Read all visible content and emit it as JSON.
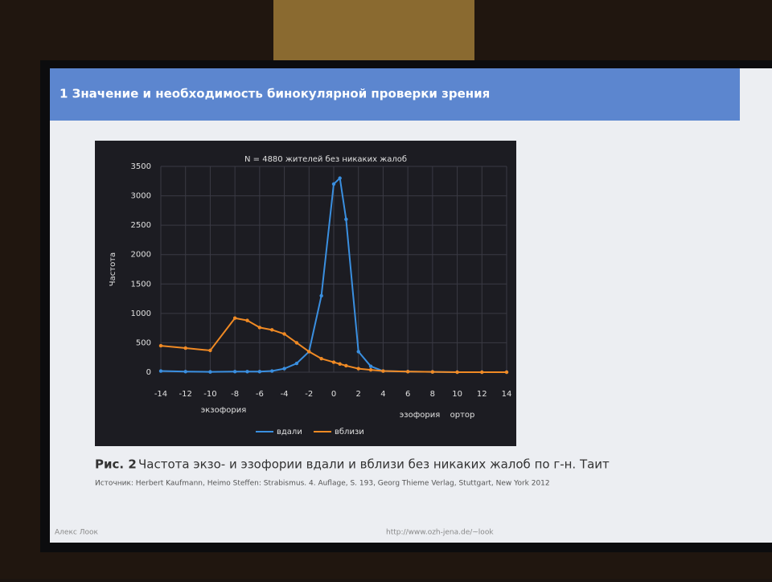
{
  "slide": {
    "title": "1 Значение и необходимость бинокулярной проверки зрения",
    "caption_label": "Рис. 2",
    "caption": "Частота экзо- и эзофории вдали и вблизи без никаких жалоб по г-н. Таит",
    "source": "Источник: Herbert Kaufmann, Heimo Steffen: Strabismus. 4. Auflage, S. 193, Georg Thieme Verlag, Stuttgart, New York 2012",
    "footer_left": "Алекс Лоок",
    "footer_center": "http://www.ozh-jena.de/~look"
  },
  "chart_data": {
    "type": "line",
    "title": "N = 4880 жителей без никаких жалоб",
    "y_label": "Частота",
    "annotations": [
      "экзофория",
      "эзофория",
      "ортор"
    ],
    "x": [
      -14,
      -12,
      -10,
      -8,
      -7,
      -6,
      -5,
      -4,
      -3,
      -2,
      -1,
      0,
      0.5,
      1,
      2,
      3,
      4,
      6,
      8,
      10,
      12,
      14
    ],
    "series": [
      {
        "name": "вдали",
        "color": "#3a8fe0",
        "values": [
          20,
          10,
          5,
          10,
          10,
          10,
          20,
          60,
          150,
          350,
          1300,
          3200,
          3300,
          2600,
          350,
          100,
          20,
          10,
          5,
          0,
          0,
          0
        ]
      },
      {
        "name": "вблизи",
        "color": "#f08a24",
        "values": [
          450,
          410,
          370,
          920,
          880,
          760,
          720,
          650,
          500,
          350,
          230,
          170,
          140,
          110,
          60,
          40,
          20,
          10,
          5,
          0,
          0,
          0
        ]
      }
    ],
    "xlim": [
      -14,
      14
    ],
    "xticks": [
      -14,
      -12,
      -10,
      -8,
      -6,
      -4,
      -2,
      0,
      2,
      4,
      6,
      8,
      10,
      12,
      14
    ],
    "ylim": [
      0,
      3500
    ],
    "yticks": [
      0,
      500,
      1000,
      1500,
      2000,
      2500,
      3000,
      3500
    ],
    "grid": true
  }
}
